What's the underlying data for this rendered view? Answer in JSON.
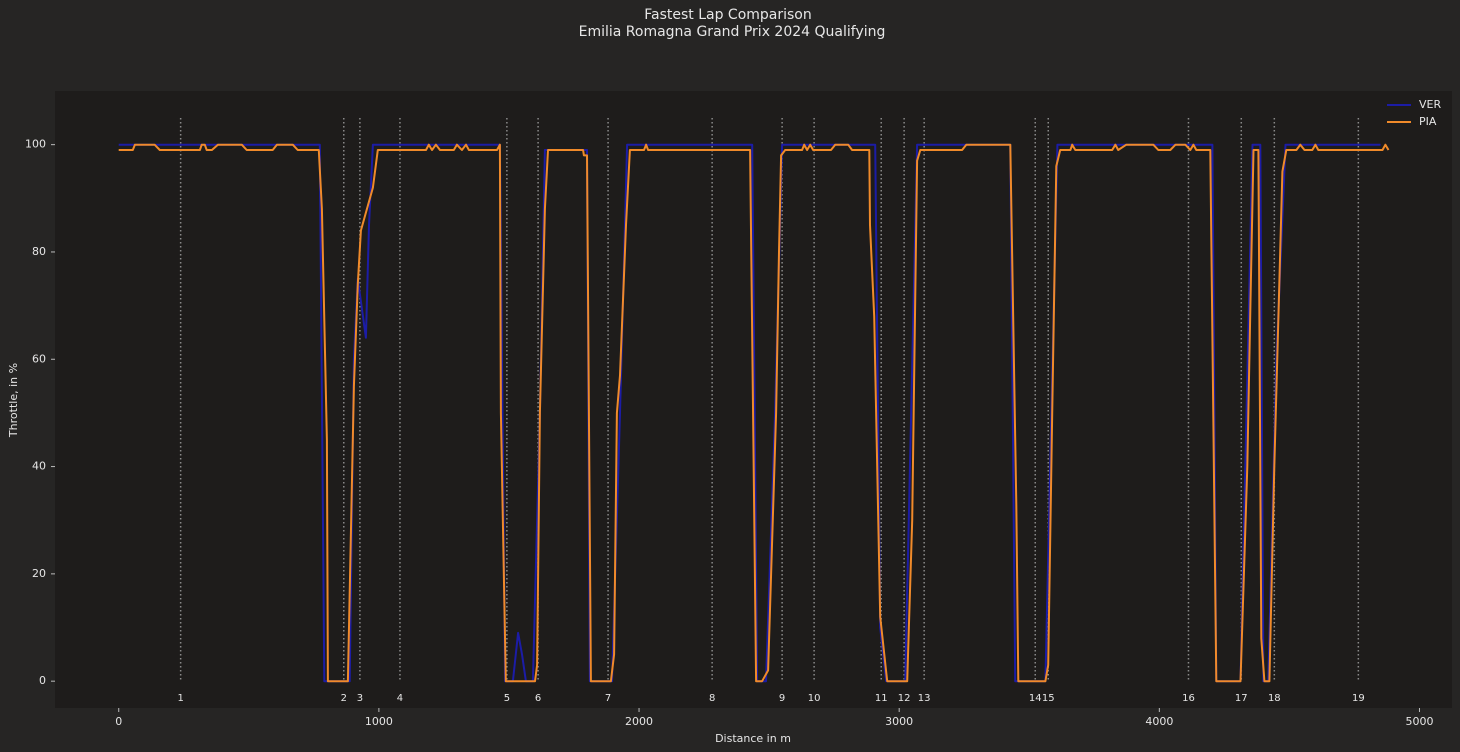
{
  "chart_data": {
    "type": "line",
    "title": "Fastest Lap Comparison",
    "subtitle": "Emilia Romagna Grand Prix 2024 Qualifying",
    "x_label": "Distance in m",
    "y_label": "Throttle, in %",
    "xlim": [
      -245,
      5125
    ],
    "ylim": [
      -5,
      110
    ],
    "xticks": [
      0,
      1000,
      2000,
      3000,
      4000,
      5000
    ],
    "yticks": [
      0,
      20,
      40,
      60,
      80,
      100
    ],
    "grid": false,
    "legend": "upper right",
    "corners": {
      "numbers": [
        1,
        2,
        3,
        4,
        5,
        6,
        7,
        8,
        9,
        10,
        11,
        12,
        13,
        14,
        15,
        16,
        17,
        18,
        19
      ],
      "distances": [
        238,
        865,
        927,
        1081,
        1492,
        1612,
        1881,
        2281,
        2550,
        2673,
        2931,
        3019,
        3096,
        3523,
        3573,
        4112,
        4315,
        4442,
        4765
      ]
    },
    "series": [
      {
        "name": "VER",
        "color": "#1c1ca6",
        "x": [
          0,
          773,
          790,
          888,
          904,
          919,
          950,
          962,
          977,
          1465,
          1485,
          1515,
          1535,
          1550,
          1565,
          1592,
          1619,
          1638,
          1800,
          1811,
          1896,
          1927,
          1954,
          2435,
          2454,
          2488,
          2523,
          2550,
          2908,
          2927,
          2950,
          3023,
          3069,
          3427,
          3446,
          3562,
          3608,
          4204,
          4219,
          4312,
          4358,
          4388,
          4400,
          4419,
          4450,
          4485,
          4850
        ],
        "values": [
          100,
          100,
          0,
          0,
          60,
          75,
          64,
          85,
          100,
          100,
          0,
          0,
          9,
          5,
          0,
          0,
          50,
          99,
          99,
          0,
          0,
          50,
          100,
          100,
          0,
          0,
          50,
          100,
          100,
          10,
          0,
          0,
          100,
          100,
          0,
          0,
          100,
          100,
          0,
          0,
          100,
          100,
          0,
          0,
          60,
          100,
          100
        ]
      },
      {
        "name": "PIA",
        "color": "#f08a2a",
        "x": [
          0,
          54,
          62,
          138,
          158,
          312,
          319,
          331,
          338,
          358,
          381,
          473,
          492,
          592,
          608,
          669,
          688,
          769,
          781,
          800,
          804,
          881,
          904,
          919,
          931,
          977,
          996,
          1181,
          1192,
          1204,
          1219,
          1235,
          1288,
          1300,
          1319,
          1335,
          1346,
          1454,
          1465,
          1469,
          1488,
          1600,
          1608,
          1619,
          1638,
          1650,
          1785,
          1788,
          1800,
          1815,
          1892,
          1904,
          1915,
          1927,
          1950,
          1965,
          2019,
          2027,
          2035,
          2427,
          2450,
          2473,
          2496,
          2527,
          2538,
          2546,
          2562,
          2627,
          2635,
          2646,
          2658,
          2669,
          2738,
          2754,
          2804,
          2819,
          2885,
          2888,
          2904,
          2927,
          2954,
          3031,
          3050,
          3069,
          3081,
          3242,
          3258,
          3427,
          3450,
          3458,
          3562,
          3573,
          3588,
          3604,
          3619,
          3658,
          3665,
          3677,
          3819,
          3831,
          3842,
          3873,
          3977,
          3996,
          4042,
          4062,
          4100,
          4119,
          4131,
          4142,
          4196,
          4219,
          4312,
          4338,
          4350,
          4362,
          4381,
          4392,
          4404,
          4423,
          4442,
          4473,
          4488,
          4527,
          4542,
          4558,
          4588,
          4600,
          4611,
          4858,
          4869,
          4881
        ],
        "values": [
          99,
          99,
          100,
          100,
          99,
          99,
          100,
          100,
          99,
          99,
          100,
          100,
          99,
          99,
          100,
          100,
          99,
          99,
          88,
          45,
          0,
          0,
          55,
          74,
          84,
          92,
          99,
          99,
          100,
          99,
          100,
          99,
          99,
          100,
          99,
          100,
          99,
          99,
          100,
          50,
          0,
          0,
          3,
          50,
          88,
          99,
          99,
          98,
          98,
          0,
          0,
          5,
          50,
          57,
          85,
          99,
          99,
          100,
          99,
          99,
          0,
          0,
          2,
          50,
          80,
          98,
          99,
          99,
          100,
          99,
          100,
          99,
          99,
          100,
          100,
          99,
          99,
          85,
          68,
          12,
          0,
          0,
          30,
          97,
          99,
          99,
          100,
          100,
          33,
          0,
          0,
          3,
          50,
          96,
          99,
          99,
          100,
          99,
          99,
          100,
          99,
          100,
          100,
          99,
          99,
          100,
          100,
          99,
          100,
          99,
          99,
          0,
          0,
          40,
          70,
          99,
          99,
          8,
          0,
          0,
          40,
          95,
          99,
          99,
          100,
          99,
          99,
          100,
          99,
          99,
          100,
          99
        ]
      }
    ]
  }
}
